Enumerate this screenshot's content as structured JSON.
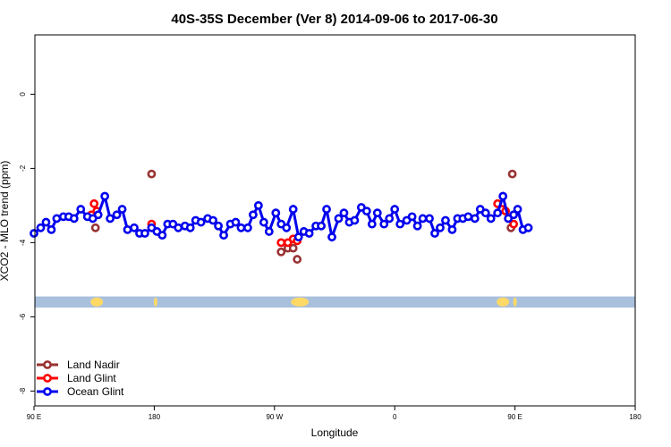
{
  "chart_data": {
    "type": "line",
    "title": "40S-35S December (Ver 8)   2014-09-06 to 2017-06-30",
    "xlabel": "Longitude",
    "ylabel": "XCO2 - MLO trend (ppm)",
    "xlim": [
      90,
      450
    ],
    "ylim": [
      -8.4,
      1.6
    ],
    "x_ticks": [
      {
        "value": 90,
        "label": "90 E"
      },
      {
        "value": 180,
        "label": "180"
      },
      {
        "value": 270,
        "label": "90 W"
      },
      {
        "value": 360,
        "label": "0"
      },
      {
        "value": 450,
        "label": "90 E"
      },
      {
        "value": 540,
        "label": "180"
      }
    ],
    "y_ticks": [
      {
        "value": 0,
        "label": "0"
      },
      {
        "value": -2,
        "label": "-2"
      },
      {
        "value": -4,
        "label": "-4"
      },
      {
        "value": -6,
        "label": "-6"
      },
      {
        "value": -8,
        "label": "-8"
      }
    ],
    "grid": false,
    "legend_placement": "bottom-left",
    "land_strip": {
      "y_range": [
        -5.75,
        -5.45
      ],
      "color": "#a9c0dd",
      "land_color": "#ffd966"
    },
    "series": [
      {
        "name": "Land Nadir",
        "color": "#993333",
        "points": [
          [
            178,
            -2.15
          ],
          [
            275,
            -4.25
          ],
          [
            280,
            -4.15
          ],
          [
            284,
            -4.15
          ],
          [
            287,
            -4.45
          ],
          [
            136,
            -3.6
          ],
          [
            447,
            -3.6
          ],
          [
            448,
            -2.15
          ]
        ]
      },
      {
        "name": "Land Glint",
        "color": "#ff0000",
        "points": [
          [
            135,
            -2.95
          ],
          [
            133,
            -3.25
          ],
          [
            137,
            -3.15
          ],
          [
            178,
            -3.5
          ],
          [
            275,
            -4.0
          ],
          [
            280,
            -4.0
          ],
          [
            284,
            -3.9
          ],
          [
            287,
            -3.95
          ],
          [
            437,
            -2.95
          ],
          [
            440,
            -3.1
          ],
          [
            443,
            -3.15
          ],
          [
            449,
            -3.5
          ]
        ]
      },
      {
        "name": "Ocean Glint",
        "color": "#0000ee",
        "points": [
          [
            90,
            -3.75
          ],
          [
            95,
            -3.6
          ],
          [
            99,
            -3.45
          ],
          [
            103,
            -3.65
          ],
          [
            107,
            -3.35
          ],
          [
            112,
            -3.3
          ],
          [
            116,
            -3.3
          ],
          [
            120,
            -3.35
          ],
          [
            125,
            -3.1
          ],
          [
            130,
            -3.3
          ],
          [
            134,
            -3.35
          ],
          [
            138,
            -3.25
          ],
          [
            143,
            -2.75
          ],
          [
            147,
            -3.35
          ],
          [
            152,
            -3.25
          ],
          [
            156,
            -3.1
          ],
          [
            160,
            -3.65
          ],
          [
            165,
            -3.6
          ],
          [
            169,
            -3.75
          ],
          [
            173,
            -3.75
          ],
          [
            178,
            -3.6
          ],
          [
            182,
            -3.7
          ],
          [
            186,
            -3.8
          ],
          [
            190,
            -3.5
          ],
          [
            194,
            -3.5
          ],
          [
            198,
            -3.6
          ],
          [
            203,
            -3.55
          ],
          [
            207,
            -3.6
          ],
          [
            211,
            -3.4
          ],
          [
            215,
            -3.45
          ],
          [
            220,
            -3.35
          ],
          [
            224,
            -3.4
          ],
          [
            228,
            -3.55
          ],
          [
            232,
            -3.8
          ],
          [
            237,
            -3.5
          ],
          [
            241,
            -3.45
          ],
          [
            245,
            -3.6
          ],
          [
            250,
            -3.6
          ],
          [
            254,
            -3.25
          ],
          [
            258,
            -3.0
          ],
          [
            262,
            -3.45
          ],
          [
            266,
            -3.7
          ],
          [
            271,
            -3.2
          ],
          [
            275,
            -3.5
          ],
          [
            279,
            -3.6
          ],
          [
            284,
            -3.1
          ],
          [
            288,
            -3.85
          ],
          [
            292,
            -3.7
          ],
          [
            296,
            -3.75
          ],
          [
            301,
            -3.55
          ],
          [
            305,
            -3.55
          ],
          [
            309,
            -3.1
          ],
          [
            313,
            -3.85
          ],
          [
            318,
            -3.35
          ],
          [
            322,
            -3.2
          ],
          [
            326,
            -3.45
          ],
          [
            330,
            -3.4
          ],
          [
            335,
            -3.05
          ],
          [
            339,
            -3.15
          ],
          [
            343,
            -3.5
          ],
          [
            347,
            -3.2
          ],
          [
            352,
            -3.5
          ],
          [
            356,
            -3.35
          ],
          [
            360,
            -3.1
          ],
          [
            364,
            -3.5
          ],
          [
            369,
            -3.4
          ],
          [
            373,
            -3.3
          ],
          [
            377,
            -3.55
          ],
          [
            381,
            -3.35
          ],
          [
            386,
            -3.35
          ],
          [
            390,
            -3.75
          ],
          [
            394,
            -3.6
          ],
          [
            398,
            -3.4
          ],
          [
            403,
            -3.65
          ],
          [
            407,
            -3.35
          ],
          [
            411,
            -3.35
          ],
          [
            415,
            -3.3
          ],
          [
            420,
            -3.35
          ],
          [
            424,
            -3.1
          ],
          [
            428,
            -3.2
          ],
          [
            432,
            -3.35
          ],
          [
            437,
            -3.2
          ],
          [
            441,
            -2.75
          ],
          [
            445,
            -3.35
          ],
          [
            449,
            -3.25
          ],
          [
            452,
            -3.1
          ],
          [
            456,
            -3.65
          ],
          [
            460,
            -3.6
          ]
        ]
      }
    ]
  }
}
